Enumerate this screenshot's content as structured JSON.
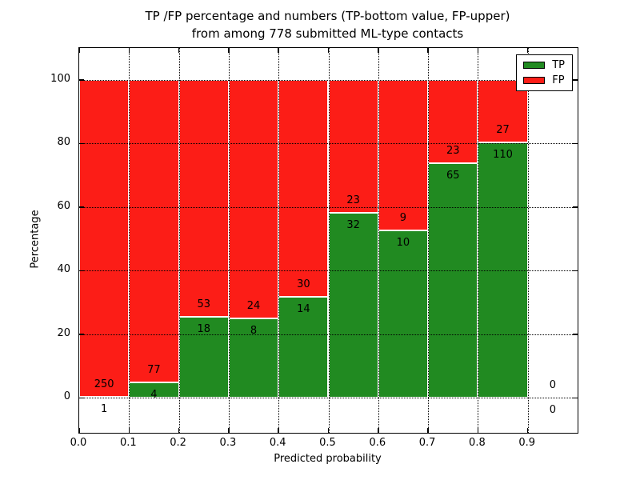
{
  "title": "TP /FP percentage and numbers (TP-bottom value, FP-upper)",
  "subtitle": "from among 778 submitted ML-type contacts",
  "colors": {
    "tp_green": "#218a21",
    "fp_red": "#fc1d17",
    "grid": "#000000",
    "bar_edge": "#ffffff",
    "background": "#ffffff"
  },
  "chart_data": {
    "type": "bar",
    "stacked": true,
    "title": "TP /FP percentage and numbers (TP-bottom value, FP-upper)",
    "subtitle": "from among 778 submitted ML-type contacts",
    "xlabel": "Predicted probability",
    "ylabel": "Percentage",
    "xlim": [
      0.0,
      1.0
    ],
    "ylim": [
      -11,
      110
    ],
    "xticks": [
      0.0,
      0.1,
      0.2,
      0.3,
      0.4,
      0.5,
      0.6,
      0.7,
      0.8,
      0.9
    ],
    "xtick_labels": [
      "0.0",
      "0.1",
      "0.2",
      "0.3",
      "0.4",
      "0.5",
      "0.6",
      "0.7",
      "0.8",
      "0.9"
    ],
    "yticks": [
      0,
      20,
      40,
      60,
      80,
      100
    ],
    "grid": "dotted",
    "grid_on_top": true,
    "legend": {
      "position": "upper-right",
      "items": [
        {
          "label": "TP",
          "color": "#218a21"
        },
        {
          "label": "FP",
          "color": "#fc1d17"
        }
      ]
    },
    "bins": [
      {
        "range": "0.0-0.1",
        "x_start": 0.0,
        "x_end": 0.1,
        "tp": 1,
        "fp": 250,
        "tp_pct": 0.4
      },
      {
        "range": "0.1-0.2",
        "x_start": 0.1,
        "x_end": 0.2,
        "tp": 4,
        "fp": 77,
        "tp_pct": 4.9
      },
      {
        "range": "0.2-0.3",
        "x_start": 0.2,
        "x_end": 0.3,
        "tp": 18,
        "fp": 53,
        "tp_pct": 25.4
      },
      {
        "range": "0.3-0.4",
        "x_start": 0.3,
        "x_end": 0.4,
        "tp": 8,
        "fp": 24,
        "tp_pct": 25.0
      },
      {
        "range": "0.4-0.5",
        "x_start": 0.4,
        "x_end": 0.5,
        "tp": 14,
        "fp": 30,
        "tp_pct": 31.8
      },
      {
        "range": "0.5-0.6",
        "x_start": 0.5,
        "x_end": 0.6,
        "tp": 32,
        "fp": 23,
        "tp_pct": 58.2
      },
      {
        "range": "0.6-0.7",
        "x_start": 0.6,
        "x_end": 0.7,
        "tp": 10,
        "fp": 9,
        "tp_pct": 52.6
      },
      {
        "range": "0.7-0.8",
        "x_start": 0.7,
        "x_end": 0.8,
        "tp": 65,
        "fp": 23,
        "tp_pct": 73.9
      },
      {
        "range": "0.8-0.9",
        "x_start": 0.8,
        "x_end": 0.9,
        "tp": 110,
        "fp": 27,
        "tp_pct": 80.3
      },
      {
        "range": "0.9-1.0",
        "x_start": 0.9,
        "x_end": 1.0,
        "tp": 0,
        "fp": 0,
        "tp_pct": 0
      }
    ]
  }
}
